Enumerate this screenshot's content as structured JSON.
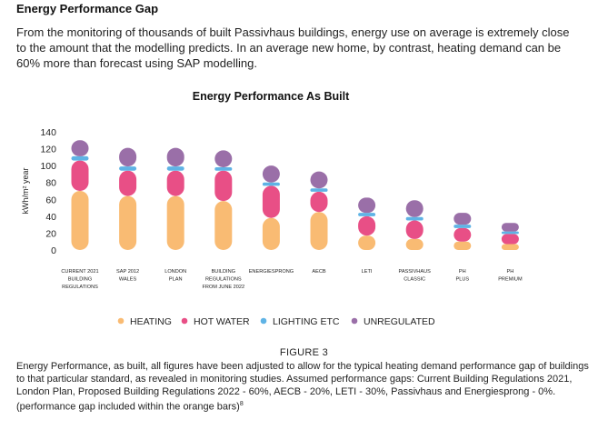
{
  "heading": "Energy Performance Gap",
  "intro_lines": [
    "From the monitoring of thousands of built Passivhaus buildings, energy use on average is extremely close",
    "to the amount that the modelling predicts. In an average new home, by contrast, heating demand can be",
    "60% more than forecast using SAP modelling."
  ],
  "colors": {
    "heating": "#f9bb73",
    "hot_water": "#e84f86",
    "lighting": "#5fb3e5",
    "unregulated": "#9a6fa8"
  },
  "chart_data": {
    "type": "bar",
    "stacked": true,
    "title": "Energy Performance As Built",
    "ylabel": "kWh/m² year",
    "ylim": [
      0,
      140
    ],
    "yticks": [
      0,
      20,
      40,
      60,
      80,
      100,
      120,
      140
    ],
    "categories": [
      [
        "CURRENT 2021",
        "BUILDING",
        "REGULATIONS"
      ],
      [
        "SAP 2012",
        "WALES"
      ],
      [
        "LONDON",
        "PLAN"
      ],
      [
        "BUILDING",
        "REGULATIONS",
        "FROM JUNE 2022"
      ],
      [
        "ENERGIESPRONG"
      ],
      [
        "AECB"
      ],
      [
        "LETI"
      ],
      [
        "PASSIVHAUS",
        "CLASSIC"
      ],
      [
        "PH",
        "PLUS"
      ],
      [
        "PH",
        "PREMIUM"
      ]
    ],
    "series": [
      {
        "name": "HEATING",
        "color_key": "heating",
        "values": [
          70,
          64,
          64,
          58,
          38,
          45,
          17,
          13,
          10,
          7
        ]
      },
      {
        "name": "HOT WATER",
        "color_key": "hot_water",
        "values": [
          36,
          30,
          30,
          36,
          38,
          24,
          23,
          22,
          16,
          12
        ]
      },
      {
        "name": "LIGHTING ETC",
        "color_key": "lighting",
        "values": [
          5,
          5,
          5,
          4,
          4,
          4,
          4,
          4,
          4,
          3
        ]
      },
      {
        "name": "UNREGULATED",
        "color_key": "unregulated",
        "values": [
          19,
          22,
          22,
          20,
          20,
          20,
          18,
          20,
          14,
          10
        ]
      }
    ]
  },
  "figure_label": "FIGURE 3",
  "caption_lines": [
    "Energy Performance, as built, all figures have been adjusted to allow for the typical heating demand performance gap of buildings",
    "to that particular standard, as revealed in monitoring studies. Assumed performance gaps: Current Building Regulations 2021,",
    "London Plan, Proposed Building Regulations 2022 - 60%, AECB - 20%, LETI - 30%, Passivhaus and Energiesprong - 0%.",
    "(performance gap included within the orange bars)"
  ],
  "caption_footnote": "8"
}
